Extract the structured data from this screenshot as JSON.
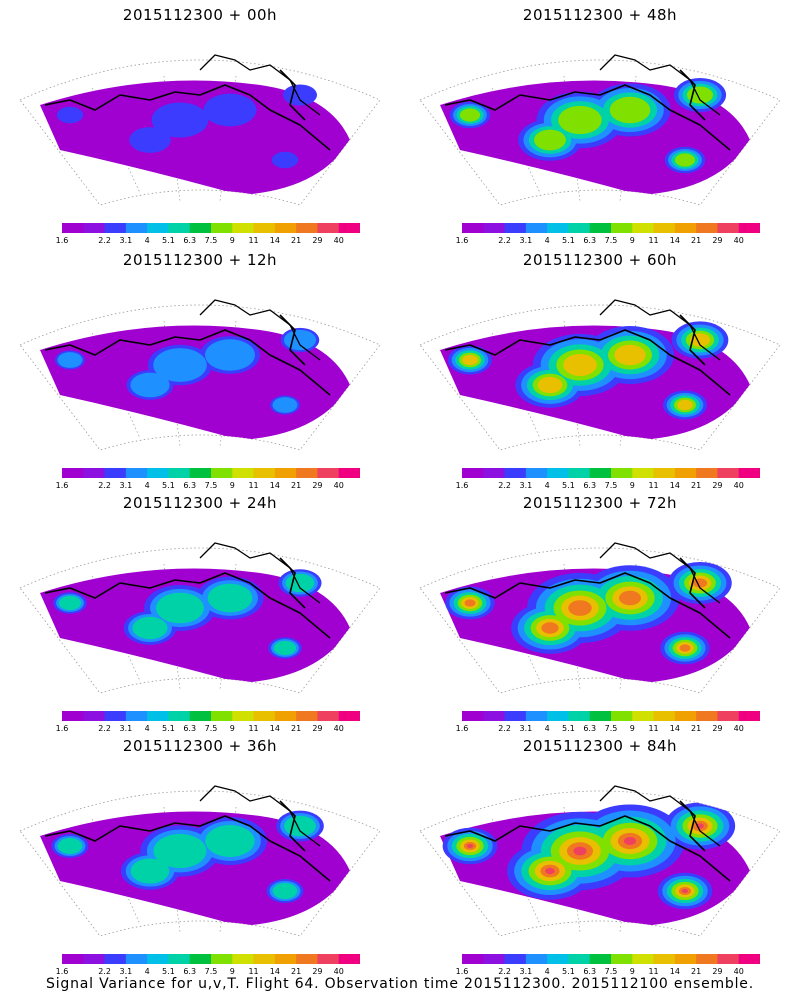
{
  "panels": [
    {
      "title": "2015112300 + 00h",
      "intensity": 0.15
    },
    {
      "title": "2015112300 + 48h",
      "intensity": 0.55
    },
    {
      "title": "2015112300 + 12h",
      "intensity": 0.25
    },
    {
      "title": "2015112300 + 60h",
      "intensity": 0.65
    },
    {
      "title": "2015112300 + 24h",
      "intensity": 0.35
    },
    {
      "title": "2015112300 + 72h",
      "intensity": 0.8
    },
    {
      "title": "2015112300 + 36h",
      "intensity": 0.45
    },
    {
      "title": "2015112300 + 84h",
      "intensity": 0.95
    }
  ],
  "colorbar": {
    "colors": [
      "#a000d0",
      "#8c10e0",
      "#3c3cff",
      "#1e90ff",
      "#00c0e8",
      "#00d2a8",
      "#00c040",
      "#80e000",
      "#d0e000",
      "#e8c000",
      "#f0a000",
      "#f07820",
      "#f04060",
      "#f00080"
    ],
    "labels": [
      "1.6",
      "2.2",
      "3.1",
      "4",
      "5.1",
      "6.3",
      "7.5",
      "9",
      "11",
      "14",
      "21",
      "29",
      "40"
    ]
  },
  "caption": "Signal Variance for u,v,T. Flight 64. Observation time 2015112300. 2015112100 ensemble."
}
